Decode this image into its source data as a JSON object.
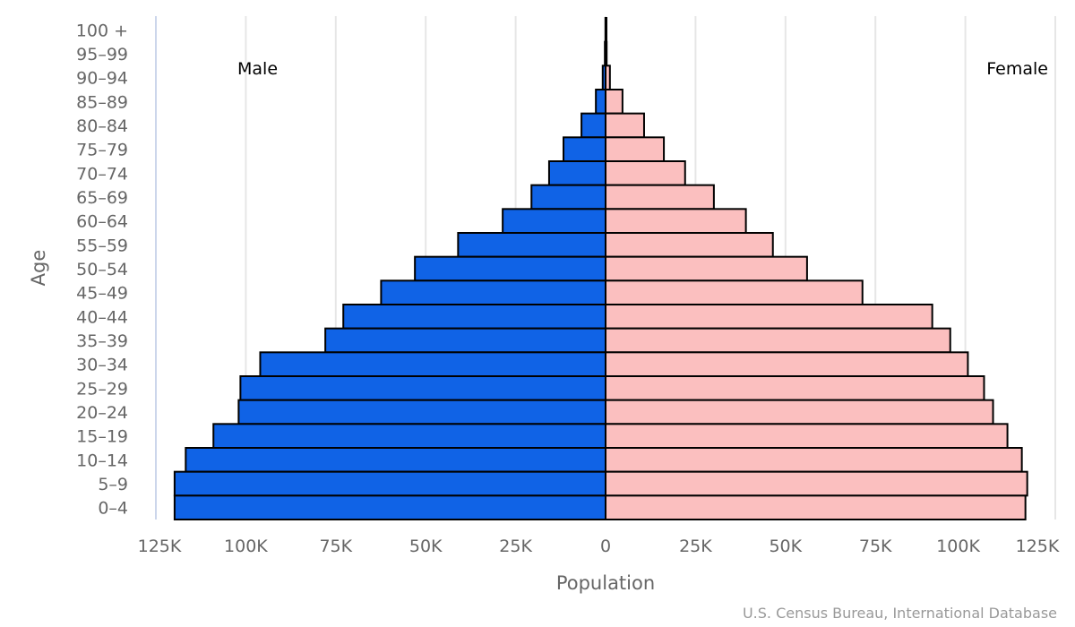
{
  "chart_data": {
    "type": "bar",
    "orientation": "horizontal",
    "subtype": "population-pyramid",
    "title": "",
    "xlabel": "Population",
    "ylabel": "Age",
    "credit": "U.S. Census Bureau, International Database",
    "categories": [
      "100 +",
      "95-99",
      "90-94",
      "85-89",
      "80-84",
      "75-79",
      "70-74",
      "65-69",
      "60-64",
      "55-59",
      "50-54",
      "45-49",
      "40-44",
      "35-39",
      "30-34",
      "25-29",
      "20-24",
      "15-19",
      "10-14",
      "5-9",
      "0-4"
    ],
    "x_ticks": [
      {
        "value": -125000,
        "label": "125K"
      },
      {
        "value": -100000,
        "label": "100K"
      },
      {
        "value": -75000,
        "label": "75K"
      },
      {
        "value": -50000,
        "label": "50K"
      },
      {
        "value": -25000,
        "label": "25K"
      },
      {
        "value": 0,
        "label": "0"
      },
      {
        "value": 25000,
        "label": "25K"
      },
      {
        "value": 50000,
        "label": "50K"
      },
      {
        "value": 75000,
        "label": "75K"
      },
      {
        "value": 100000,
        "label": "100K"
      },
      {
        "value": 125000,
        "label": "125K"
      }
    ],
    "xlim": [
      -125000,
      125000
    ],
    "grid": true,
    "series": [
      {
        "name": "Male",
        "side": "left",
        "color": "#1063e6",
        "values": [
          50,
          200,
          800,
          2700,
          6700,
          11700,
          15700,
          20600,
          28600,
          41000,
          53000,
          62400,
          72900,
          77900,
          96000,
          101500,
          102000,
          109000,
          116700,
          119800,
          119800
        ]
      },
      {
        "name": "Female",
        "side": "right",
        "color": "#fbbfbf",
        "values": [
          100,
          300,
          1200,
          4700,
          10700,
          16200,
          22100,
          30100,
          39000,
          46500,
          56000,
          71400,
          90800,
          95800,
          100700,
          105200,
          107700,
          111700,
          115700,
          117200,
          116700
        ]
      }
    ]
  }
}
